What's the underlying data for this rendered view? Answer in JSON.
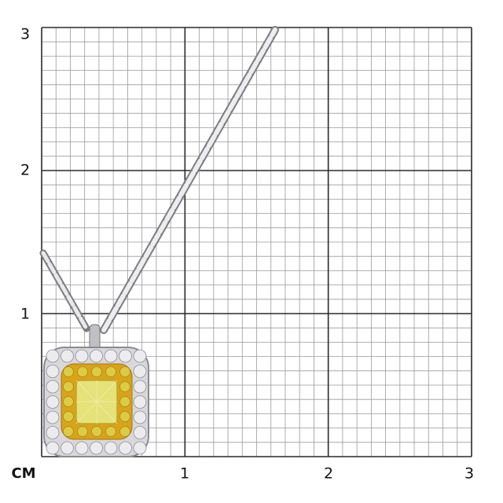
{
  "scale": {
    "unit": "CM",
    "x_ticks": [
      "1",
      "2",
      "3"
    ],
    "y_ticks": [
      "1",
      "2",
      "3"
    ],
    "minor_divisions_per_unit": 10
  },
  "colors": {
    "minor_grid": "#9a9a9a",
    "major_grid": "#2a2a2a",
    "metal": "#c8c8cc",
    "center_stone": "#e6e27a",
    "yellow_halo": "#d9a31a"
  }
}
